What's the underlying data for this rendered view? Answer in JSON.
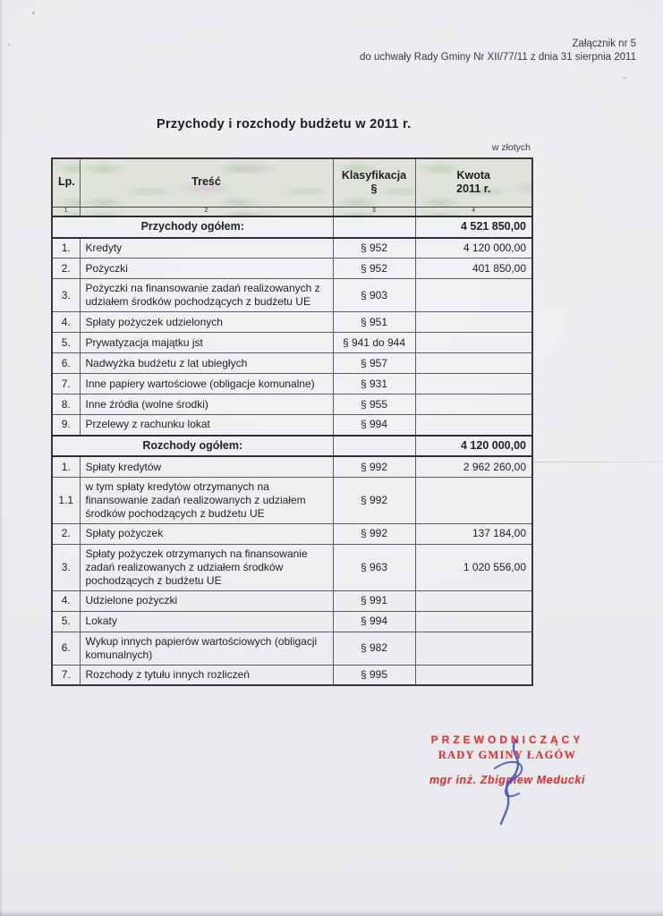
{
  "page": {
    "attachment_note_line1": "Załącznik nr 5",
    "attachment_note_line2": "do uchwały Rady Gminy Nr XII/77/11 z dnia 31 sierpnia 2011",
    "title": "Przychody i rozchody budżetu w 2011 r.",
    "currency_note": "w złotych"
  },
  "table": {
    "headers": {
      "lp": "Lp.",
      "tresc": "Treść",
      "klasyfikacja_line1": "Klasyfikacja",
      "klasyfikacja_line2": "§",
      "kwota_line1": "Kwota",
      "kwota_line2": "2011 r."
    },
    "column_numbers": [
      "1",
      "2",
      "3",
      "4"
    ],
    "sections": [
      {
        "title": "Przychody ogółem:",
        "total": "4 521 850,00",
        "rows": [
          {
            "lp": "1.",
            "tresc": "Kredyty",
            "klasyfikacja": "§ 952",
            "kwota": "4 120 000,00"
          },
          {
            "lp": "2.",
            "tresc": "Pożyczki",
            "klasyfikacja": "§ 952",
            "kwota": "401 850,00"
          },
          {
            "lp": "3.",
            "tresc": "Pożyczki na finansowanie zadań realizowanych z udziałem środków pochodzących z budżetu UE",
            "klasyfikacja": "§ 903",
            "kwota": ""
          },
          {
            "lp": "4.",
            "tresc": "Spłaty pożyczek udzielonych",
            "klasyfikacja": "§ 951",
            "kwota": ""
          },
          {
            "lp": "5.",
            "tresc": "Prywatyzacja majątku jst",
            "klasyfikacja": "§ 941 do 944",
            "kwota": ""
          },
          {
            "lp": "6.",
            "tresc": "Nadwyżka budżetu z lat ubiegłych",
            "klasyfikacja": "§ 957",
            "kwota": ""
          },
          {
            "lp": "7.",
            "tresc": "Inne papiery wartościowe (obligacje komunalne)",
            "klasyfikacja": "§ 931",
            "kwota": ""
          },
          {
            "lp": "8.",
            "tresc": "Inne źródła (wolne środki)",
            "klasyfikacja": "§ 955",
            "kwota": ""
          },
          {
            "lp": "9.",
            "tresc": "Przelewy z rachunku lokat",
            "klasyfikacja": "§ 994",
            "kwota": ""
          }
        ]
      },
      {
        "title": "Rozchody ogółem:",
        "total": "4 120 000,00",
        "rows": [
          {
            "lp": "1.",
            "tresc": "Spłaty kredytów",
            "klasyfikacja": "§ 992",
            "kwota": "2 962 260,00"
          },
          {
            "lp": "1.1",
            "tresc": "w tym spłaty kredytów otrzymanych na finansowanie zadań realizowanych z udziałem środków pochodzących z budżetu UE",
            "klasyfikacja": "§ 992",
            "kwota": ""
          },
          {
            "lp": "2.",
            "tresc": "Spłaty pożyczek",
            "klasyfikacja": "§ 992",
            "kwota": "137 184,00"
          },
          {
            "lp": "3.",
            "tresc": "Spłaty pożyczek otrzymanych na finansowanie zadań realizowanych z udziałem środków pochodzących z budżetu UE",
            "klasyfikacja": "§ 963",
            "kwota": "1 020 556,00"
          },
          {
            "lp": "4.",
            "tresc": "Udzielone pożyczki",
            "klasyfikacja": "§ 991",
            "kwota": ""
          },
          {
            "lp": "5.",
            "tresc": "Lokaty",
            "klasyfikacja": "§ 994",
            "kwota": ""
          },
          {
            "lp": "6.",
            "tresc": "Wykup innych papierów wartościowych (obligacji komunalnych)",
            "klasyfikacja": "§ 982",
            "kwota": ""
          },
          {
            "lp": "7.",
            "tresc": "Rozchody z tytułu innych rozliczeń",
            "klasyfikacja": "§ 995",
            "kwota": ""
          }
        ]
      }
    ]
  },
  "stamp": {
    "role_line1": "PRZEWODNICZĄCY",
    "role_line2": "RADY GMINY ŁAGÓW",
    "name": "mgr inż. Zbigniew Meducki"
  },
  "colors": {
    "stamp_red": "#dc3838",
    "signature_blue": "#3d49b8",
    "paper": "#eaecef",
    "header_mottle_green": "#c9d7c3",
    "header_mottle_pink": "#ddc9d7"
  }
}
